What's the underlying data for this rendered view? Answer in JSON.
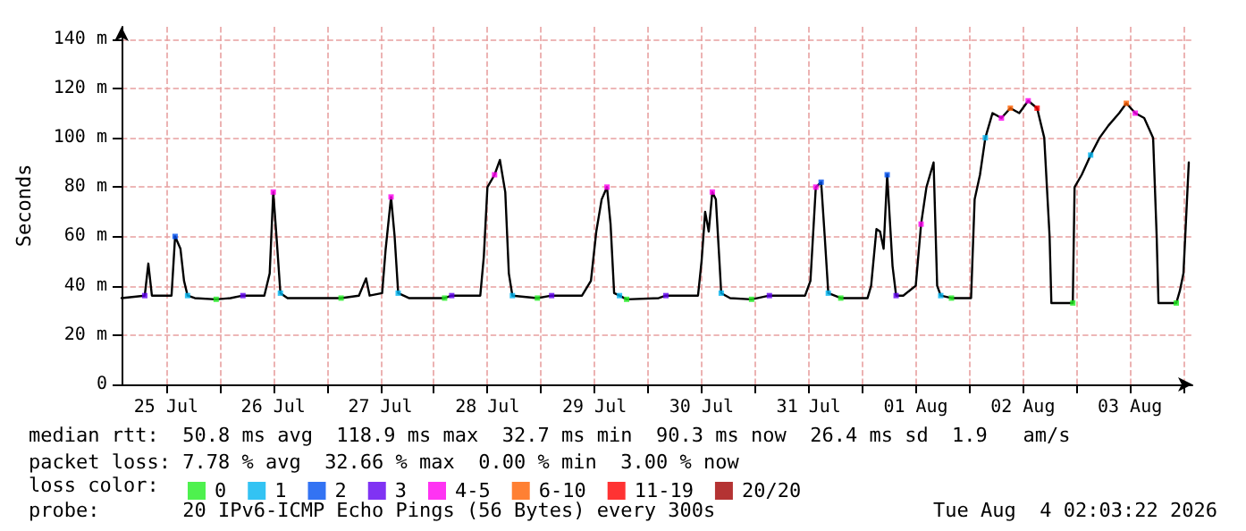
{
  "chart_data": {
    "type": "line",
    "ylabel": "Seconds",
    "legend_title": "loss color:",
    "legend": "bottom",
    "grid": true,
    "line_style": "solid",
    "xlim": [
      "2026-07-25T02:00",
      "2026-08-04T02:00"
    ],
    "xticks": [
      {
        "value": "2026-07-25T12:00",
        "label": "25 Jul"
      },
      {
        "value": "2026-07-26T00:00",
        "label": null
      },
      {
        "value": "2026-07-26T12:00",
        "label": "26 Jul"
      },
      {
        "value": "2026-07-27T00:00",
        "label": null
      },
      {
        "value": "2026-07-27T12:00",
        "label": "27 Jul"
      },
      {
        "value": "2026-07-28T00:00",
        "label": null
      },
      {
        "value": "2026-07-28T12:00",
        "label": "28 Jul"
      },
      {
        "value": "2026-07-29T00:00",
        "label": null
      },
      {
        "value": "2026-07-29T12:00",
        "label": "29 Jul"
      },
      {
        "value": "2026-07-30T00:00",
        "label": null
      },
      {
        "value": "2026-07-30T12:00",
        "label": "30 Jul"
      },
      {
        "value": "2026-07-31T00:00",
        "label": null
      },
      {
        "value": "2026-07-31T12:00",
        "label": "31 Jul"
      },
      {
        "value": "2026-08-01T00:00",
        "label": null
      },
      {
        "value": "2026-08-01T12:00",
        "label": "01 Aug"
      },
      {
        "value": "2026-08-02T00:00",
        "label": null
      },
      {
        "value": "2026-08-02T12:00",
        "label": "02 Aug"
      },
      {
        "value": "2026-08-03T00:00",
        "label": null
      },
      {
        "value": "2026-08-03T12:00",
        "label": "03 Aug"
      },
      {
        "value": "2026-08-04T00:00",
        "label": null
      }
    ],
    "ylim": [
      0,
      145
    ],
    "yticks": [
      0,
      {
        "value": 20,
        "label": "20 m"
      },
      {
        "value": 40,
        "label": "40 m"
      },
      {
        "value": 60,
        "label": "60 m"
      },
      {
        "value": 80,
        "label": "80 m"
      },
      {
        "value": 100,
        "label": "100 m"
      },
      {
        "value": 120,
        "label": "120 m"
      },
      {
        "value": 140,
        "label": "140 m"
      }
    ],
    "annotations": [
      "median rtt:  50.8 ms avg  118.9 ms max  32.7 ms min  90.3 ms now  26.4 ms sd  1.9   am/s",
      "packet loss: 7.78 % avg  32.66 % max  0.00 % min  3.00 % now",
      "probe:       20 IPv6-ICMP Echo Pings (56 Bytes) every 300s",
      "Tue Aug  4 02:03:22 2026"
    ],
    "series": [
      {
        "color": "#000000",
        "marker": "none",
        "x": [
          "2026-07-25T02:00",
          "2026-07-25T07:12",
          "2026-07-25T08:00",
          "2026-07-25T08:48",
          "2026-07-25T13:12",
          "2026-07-25T14:00",
          "2026-07-25T15:12",
          "2026-07-25T16:00",
          "2026-07-25T16:48",
          "2026-07-25T18:24",
          "2026-07-25T23:12",
          "2026-07-26T02:24",
          "2026-07-26T05:12",
          "2026-07-26T10:00",
          "2026-07-26T11:12",
          "2026-07-26T12:00",
          "2026-07-26T12:48",
          "2026-07-26T13:36",
          "2026-07-26T15:12",
          "2026-07-27T03:12",
          "2026-07-27T07:12",
          "2026-07-27T08:48",
          "2026-07-27T09:36",
          "2026-07-27T12:24",
          "2026-07-27T13:12",
          "2026-07-27T14:24",
          "2026-07-27T15:12",
          "2026-07-27T16:00",
          "2026-07-27T18:24",
          "2026-07-28T02:24",
          "2026-07-28T04:00",
          "2026-07-28T10:24",
          "2026-07-28T11:12",
          "2026-07-28T12:00",
          "2026-07-28T13:36",
          "2026-07-28T14:48",
          "2026-07-28T16:00",
          "2026-07-28T16:48",
          "2026-07-28T17:36",
          "2026-07-28T23:12",
          "2026-07-29T02:24",
          "2026-07-29T09:12",
          "2026-07-29T11:12",
          "2026-07-29T12:24",
          "2026-07-29T13:36",
          "2026-07-29T14:48",
          "2026-07-29T15:36",
          "2026-07-29T16:24",
          "2026-07-29T17:36",
          "2026-07-29T19:12",
          "2026-07-30T02:24",
          "2026-07-30T04:00",
          "2026-07-30T11:12",
          "2026-07-30T12:00",
          "2026-07-30T12:48",
          "2026-07-30T13:36",
          "2026-07-30T14:24",
          "2026-07-30T15:12",
          "2026-07-30T16:00",
          "2026-07-30T16:24",
          "2026-07-30T18:24",
          "2026-07-30T23:12",
          "2026-07-31T03:12",
          "2026-07-31T11:12",
          "2026-07-31T12:24",
          "2026-07-31T13:36",
          "2026-07-31T14:48",
          "2026-07-31T15:36",
          "2026-07-31T16:24",
          "2026-07-31T19:12",
          "2026-08-01T01:12",
          "2026-08-01T02:00",
          "2026-08-01T03:12",
          "2026-08-01T04:00",
          "2026-08-01T04:48",
          "2026-08-01T05:36",
          "2026-08-01T06:48",
          "2026-08-01T07:36",
          "2026-08-01T09:12",
          "2026-08-01T12:00",
          "2026-08-01T13:12",
          "2026-08-01T14:24",
          "2026-08-01T16:00",
          "2026-08-01T16:48",
          "2026-08-01T17:36",
          "2026-08-01T20:00",
          "2026-08-02T00:24",
          "2026-08-02T01:12",
          "2026-08-02T02:24",
          "2026-08-02T03:36",
          "2026-08-02T05:12",
          "2026-08-02T07:12",
          "2026-08-02T09:12",
          "2026-08-02T11:12",
          "2026-08-02T13:12",
          "2026-08-02T15:12",
          "2026-08-02T16:48",
          "2026-08-02T18:00",
          "2026-08-02T18:24",
          "2026-08-02T23:12",
          "2026-08-02T23:36",
          "2026-08-03T01:12",
          "2026-08-03T03:12",
          "2026-08-03T05:12",
          "2026-08-03T07:12",
          "2026-08-03T09:36",
          "2026-08-03T11:12",
          "2026-08-03T13:12",
          "2026-08-03T15:12",
          "2026-08-03T17:12",
          "2026-08-03T18:00",
          "2026-08-03T18:24",
          "2026-08-03T22:24",
          "2026-08-03T23:12",
          "2026-08-04T00:00",
          "2026-08-04T00:24",
          "2026-08-04T01:12"
        ],
        "values": [
          35,
          36,
          49,
          36,
          36,
          60,
          55,
          42,
          36,
          35,
          34.5,
          35,
          36,
          36,
          45,
          78,
          58,
          37,
          35,
          35,
          36,
          43,
          36,
          37,
          55,
          76,
          60,
          37,
          35,
          35,
          36,
          36,
          52,
          80,
          85,
          91,
          78,
          45,
          36,
          35,
          36,
          36,
          42,
          62,
          75,
          80,
          65,
          37,
          36,
          34.5,
          35,
          36,
          36,
          50,
          70,
          62,
          78,
          75,
          50,
          37,
          35,
          34.5,
          36,
          36,
          42,
          80,
          82,
          60,
          37,
          35,
          35,
          40,
          63,
          62,
          55,
          85,
          48,
          36,
          36,
          40,
          65,
          80,
          90,
          40,
          36,
          35,
          35,
          75,
          85,
          100,
          110,
          108,
          112,
          110,
          115,
          112,
          100,
          60,
          33,
          33,
          80,
          85,
          93,
          100,
          105,
          110,
          114,
          110,
          108,
          100,
          60,
          33,
          33,
          38,
          45,
          60,
          90
        ]
      },
      {
        "type": "scatter",
        "name": "0",
        "color": "#22ee22",
        "marker": "square",
        "x": [
          "2026-07-25T23:12",
          "2026-07-27T03:12",
          "2026-07-28T02:24",
          "2026-07-28T23:12",
          "2026-07-29T19:12",
          "2026-07-30T23:12",
          "2026-07-31T19:12",
          "2026-08-01T20:00",
          "2026-08-02T23:12",
          "2026-08-03T22:24"
        ],
        "values": [
          34.5,
          35,
          35,
          35,
          34.5,
          34.5,
          35,
          35,
          33,
          33
        ]
      },
      {
        "type": "scatter",
        "name": "1",
        "color": "#00b4f0",
        "marker": "square",
        "x": [
          "2026-07-25T16:48",
          "2026-07-26T13:36",
          "2026-07-27T16:00",
          "2026-07-28T17:36",
          "2026-07-29T17:36",
          "2026-07-30T16:24",
          "2026-07-31T16:24",
          "2026-08-01T17:36",
          "2026-08-02T03:36",
          "2026-08-03T03:12"
        ],
        "values": [
          36,
          37,
          37,
          36,
          36,
          37,
          37,
          36,
          100,
          93
        ]
      },
      {
        "type": "scatter",
        "name": "2",
        "color": "#0050f0",
        "marker": "square",
        "x": [
          "2026-07-25T14:00",
          "2026-07-31T14:48",
          "2026-08-01T05:36"
        ],
        "values": [
          60,
          82,
          85
        ]
      },
      {
        "type": "scatter",
        "name": "3",
        "color": "#6000f0",
        "marker": "square",
        "x": [
          "2026-07-25T07:12",
          "2026-07-26T05:12",
          "2026-07-28T04:00",
          "2026-07-29T02:24",
          "2026-07-30T04:00",
          "2026-07-31T03:12",
          "2026-08-01T07:36"
        ],
        "values": [
          36,
          36,
          36,
          36,
          36,
          36,
          36
        ]
      },
      {
        "type": "scatter",
        "name": "4-5",
        "color": "#ff00f0",
        "marker": "square",
        "x": [
          "2026-07-26T12:00",
          "2026-07-27T14:24",
          "2026-07-28T13:36",
          "2026-07-29T14:48",
          "2026-07-30T14:24",
          "2026-07-31T13:36",
          "2026-08-01T13:12",
          "2026-08-02T07:12",
          "2026-08-02T13:12",
          "2026-08-03T13:12"
        ],
        "values": [
          78,
          76,
          85,
          80,
          78,
          80,
          65,
          108,
          115,
          110
        ]
      },
      {
        "type": "scatter",
        "name": "6-10",
        "color": "#ff6000",
        "marker": "square",
        "x": [
          "2026-08-02T09:12",
          "2026-08-03T11:12"
        ],
        "values": [
          112,
          114
        ]
      },
      {
        "type": "scatter",
        "name": "11-19",
        "color": "#ff0000",
        "marker": "square",
        "x": [
          "2026-08-02T15:12"
        ],
        "values": [
          112
        ]
      },
      {
        "type": "scatter",
        "name": "20/20",
        "color": "#a10000",
        "marker": "square"
      }
    ]
  }
}
